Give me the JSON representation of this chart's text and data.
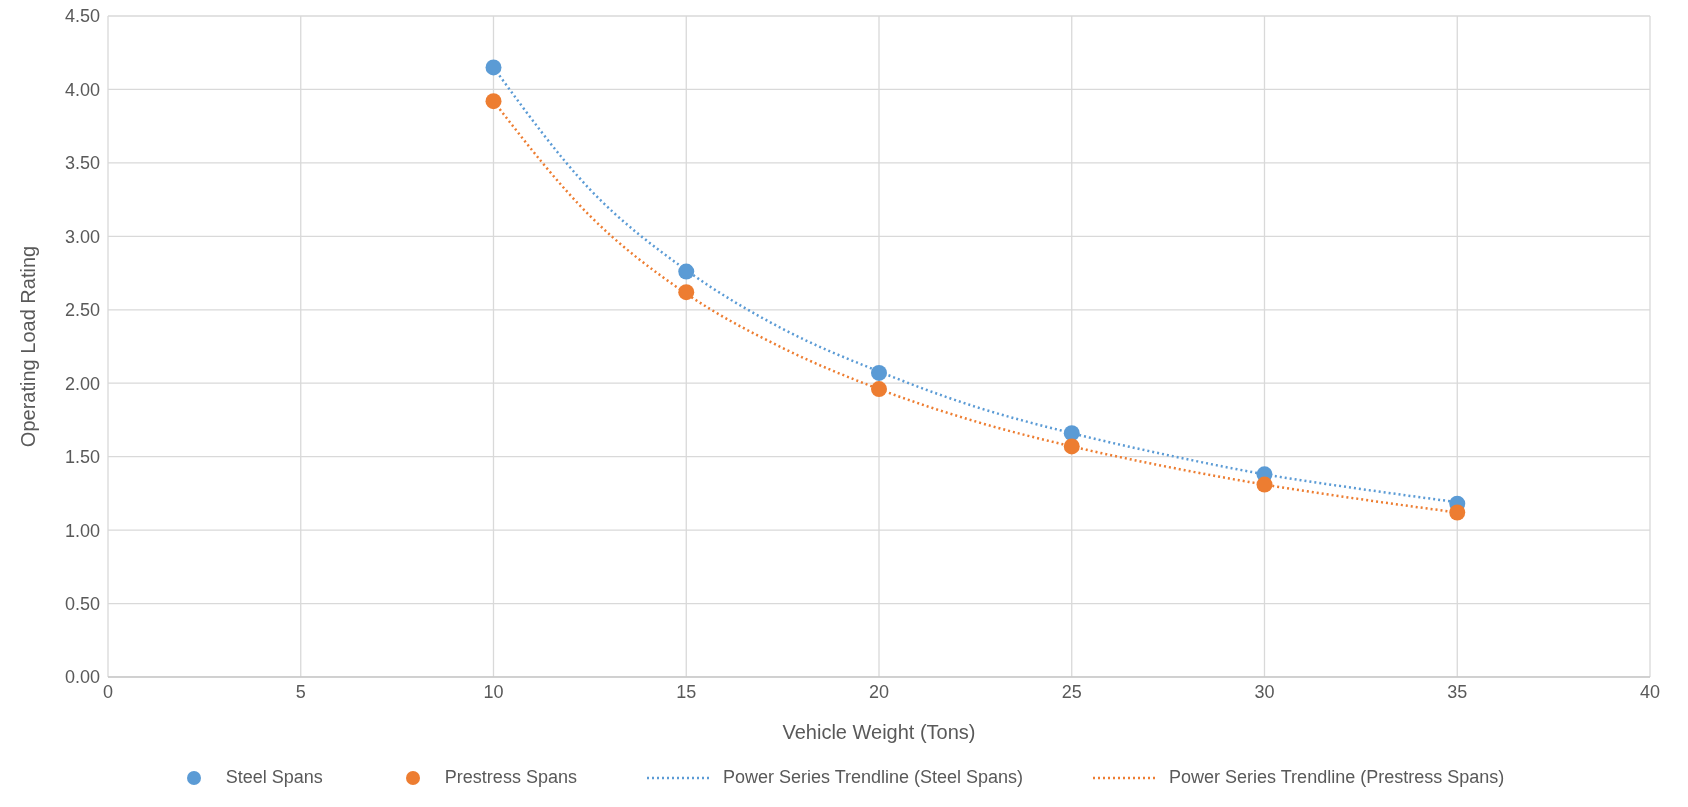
{
  "chart_data": {
    "type": "scatter",
    "xlabel": "Vehicle Weight (Tons)",
    "ylabel": "Operating Load Rating",
    "xlim": [
      0,
      40
    ],
    "xticks": [
      0,
      5,
      10,
      15,
      20,
      25,
      30,
      35,
      40
    ],
    "ylim": [
      0,
      4.5
    ],
    "yticks": [
      {
        "value": 0,
        "label": "0.00"
      },
      {
        "value": 0.5,
        "label": "0.50"
      },
      {
        "value": 1,
        "label": "1.00"
      },
      {
        "value": 1.5,
        "label": "1.50"
      },
      {
        "value": 2,
        "label": "2.00"
      },
      {
        "value": 2.5,
        "label": "2.50"
      },
      {
        "value": 3,
        "label": "3.00"
      },
      {
        "value": 3.5,
        "label": "3.50"
      },
      {
        "value": 4,
        "label": "4.00"
      },
      {
        "value": 4.5,
        "label": "4.50"
      }
    ],
    "grid": true,
    "legend": "bottom",
    "marker": "circle",
    "series": [
      {
        "name": "Steel Spans",
        "color": "#5b9bd5",
        "x": [
          10,
          15,
          20,
          25,
          30,
          35
        ],
        "values": [
          4.15,
          2.76,
          2.07,
          1.66,
          1.38,
          1.18
        ]
      },
      {
        "name": "Prestress Spans",
        "color": "#ed7d31",
        "x": [
          10,
          15,
          20,
          25,
          30,
          35
        ],
        "values": [
          3.92,
          2.62,
          1.96,
          1.57,
          1.31,
          1.12
        ]
      },
      {
        "name": "Power Series Trendline (Steel Spans)",
        "type": "line",
        "color": "#5b9bd5",
        "line_style": "dotted",
        "marker": "none",
        "x": [
          10,
          12.5,
          15,
          17.5,
          20,
          22.5,
          25,
          27.5,
          30,
          32.5,
          35
        ],
        "values": [
          4.15,
          3.32,
          2.77,
          2.37,
          2.08,
          1.84,
          1.66,
          1.51,
          1.38,
          1.28,
          1.19
        ]
      },
      {
        "name": "Power Series Trendline (Prestress Spans)",
        "type": "line",
        "color": "#ed7d31",
        "line_style": "dotted",
        "marker": "none",
        "x": [
          10,
          12.5,
          15,
          17.5,
          20,
          22.5,
          25,
          27.5,
          30,
          32.5,
          35
        ],
        "values": [
          3.92,
          3.14,
          2.61,
          2.24,
          1.96,
          1.74,
          1.57,
          1.43,
          1.31,
          1.21,
          1.12
        ]
      }
    ]
  }
}
